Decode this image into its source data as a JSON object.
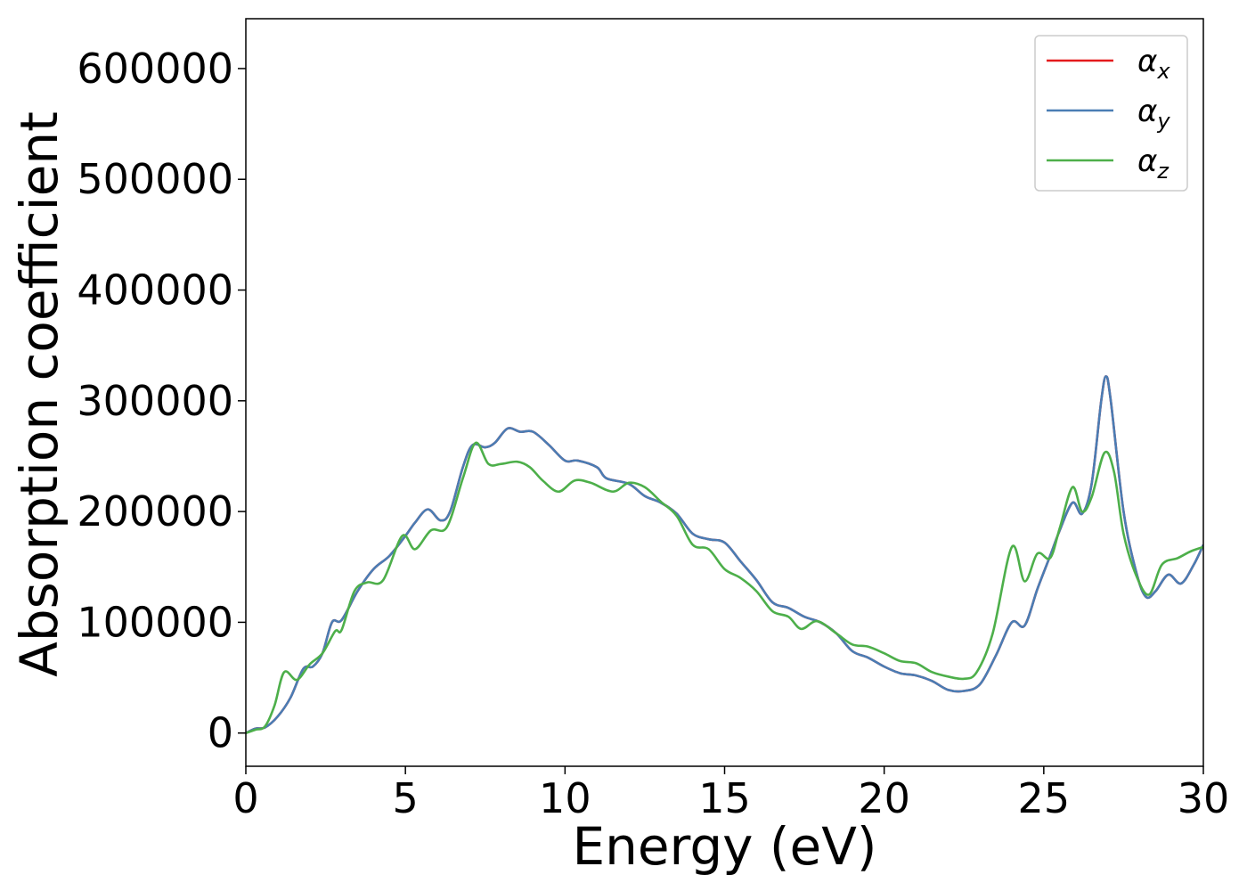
{
  "chart_data": {
    "type": "line",
    "xlabel": "Energy (eV)",
    "ylabel": "Absorption coefficient",
    "xlim": [
      0,
      30
    ],
    "ylim": [
      -30000,
      645000
    ],
    "xticks": [
      0,
      5,
      10,
      15,
      20,
      25,
      30
    ],
    "xtick_labels": [
      "0",
      "5",
      "10",
      "15",
      "20",
      "25",
      "30"
    ],
    "yticks": [
      0,
      100000,
      200000,
      300000,
      400000,
      500000,
      600000
    ],
    "ytick_labels": [
      "0",
      "100000",
      "200000",
      "300000",
      "400000",
      "500000",
      "600000"
    ],
    "grid": false,
    "legend_position": "top-right",
    "series": [
      {
        "name": "α",
        "subscript": "x",
        "color": "#e41a1c",
        "points": [
          [
            0,
            0
          ],
          [
            0.3,
            4000
          ],
          [
            0.6,
            5000
          ],
          [
            1.0,
            15000
          ],
          [
            1.4,
            32000
          ],
          [
            1.8,
            58000
          ],
          [
            2.1,
            60000
          ],
          [
            2.4,
            72000
          ],
          [
            2.7,
            100000
          ],
          [
            3.0,
            102000
          ],
          [
            3.5,
            128000
          ],
          [
            4.0,
            148000
          ],
          [
            4.5,
            160000
          ],
          [
            5.0,
            178000
          ],
          [
            5.3,
            190000
          ],
          [
            5.7,
            202000
          ],
          [
            6.1,
            192000
          ],
          [
            6.4,
            200000
          ],
          [
            6.8,
            240000
          ],
          [
            7.1,
            260000
          ],
          [
            7.5,
            258000
          ],
          [
            7.8,
            262000
          ],
          [
            8.2,
            275000
          ],
          [
            8.6,
            272000
          ],
          [
            9.0,
            272000
          ],
          [
            9.5,
            260000
          ],
          [
            10.0,
            246000
          ],
          [
            10.4,
            246000
          ],
          [
            11.0,
            240000
          ],
          [
            11.3,
            230000
          ],
          [
            12.0,
            225000
          ],
          [
            12.5,
            214000
          ],
          [
            13.0,
            208000
          ],
          [
            13.5,
            198000
          ],
          [
            14.0,
            180000
          ],
          [
            14.5,
            175000
          ],
          [
            15.0,
            172000
          ],
          [
            15.5,
            155000
          ],
          [
            16.0,
            138000
          ],
          [
            16.5,
            118000
          ],
          [
            17.0,
            113000
          ],
          [
            17.5,
            105000
          ],
          [
            18.0,
            100000
          ],
          [
            18.5,
            90000
          ],
          [
            19.0,
            74000
          ],
          [
            19.5,
            68000
          ],
          [
            20.0,
            60000
          ],
          [
            20.5,
            54000
          ],
          [
            21.0,
            52000
          ],
          [
            21.5,
            47000
          ],
          [
            22.0,
            39000
          ],
          [
            22.5,
            38000
          ],
          [
            23.0,
            44000
          ],
          [
            23.5,
            70000
          ],
          [
            24.0,
            100000
          ],
          [
            24.4,
            97000
          ],
          [
            24.8,
            130000
          ],
          [
            25.2,
            160000
          ],
          [
            25.5,
            183000
          ],
          [
            25.9,
            208000
          ],
          [
            26.2,
            198000
          ],
          [
            26.5,
            225000
          ],
          [
            26.8,
            300000
          ],
          [
            26.95,
            322000
          ],
          [
            27.1,
            300000
          ],
          [
            27.5,
            200000
          ],
          [
            27.9,
            145000
          ],
          [
            28.2,
            123000
          ],
          [
            28.5,
            128000
          ],
          [
            28.9,
            143000
          ],
          [
            29.3,
            135000
          ],
          [
            29.7,
            152000
          ],
          [
            30.0,
            170000
          ]
        ]
      },
      {
        "name": "α",
        "subscript": "y",
        "color": "#4a7db4",
        "points": [
          [
            0,
            0
          ],
          [
            0.3,
            4000
          ],
          [
            0.6,
            5000
          ],
          [
            1.0,
            15000
          ],
          [
            1.4,
            32000
          ],
          [
            1.8,
            58000
          ],
          [
            2.1,
            60000
          ],
          [
            2.4,
            72000
          ],
          [
            2.7,
            100000
          ],
          [
            3.0,
            102000
          ],
          [
            3.5,
            128000
          ],
          [
            4.0,
            148000
          ],
          [
            4.5,
            160000
          ],
          [
            5.0,
            178000
          ],
          [
            5.3,
            190000
          ],
          [
            5.7,
            202000
          ],
          [
            6.1,
            192000
          ],
          [
            6.4,
            200000
          ],
          [
            6.8,
            240000
          ],
          [
            7.1,
            260000
          ],
          [
            7.5,
            258000
          ],
          [
            7.8,
            262000
          ],
          [
            8.2,
            275000
          ],
          [
            8.6,
            272000
          ],
          [
            9.0,
            272000
          ],
          [
            9.5,
            260000
          ],
          [
            10.0,
            246000
          ],
          [
            10.4,
            246000
          ],
          [
            11.0,
            240000
          ],
          [
            11.3,
            230000
          ],
          [
            12.0,
            225000
          ],
          [
            12.5,
            214000
          ],
          [
            13.0,
            208000
          ],
          [
            13.5,
            198000
          ],
          [
            14.0,
            180000
          ],
          [
            14.5,
            175000
          ],
          [
            15.0,
            172000
          ],
          [
            15.5,
            155000
          ],
          [
            16.0,
            138000
          ],
          [
            16.5,
            118000
          ],
          [
            17.0,
            113000
          ],
          [
            17.5,
            105000
          ],
          [
            18.0,
            100000
          ],
          [
            18.5,
            90000
          ],
          [
            19.0,
            74000
          ],
          [
            19.5,
            68000
          ],
          [
            20.0,
            60000
          ],
          [
            20.5,
            54000
          ],
          [
            21.0,
            52000
          ],
          [
            21.5,
            47000
          ],
          [
            22.0,
            39000
          ],
          [
            22.5,
            38000
          ],
          [
            23.0,
            44000
          ],
          [
            23.5,
            70000
          ],
          [
            24.0,
            100000
          ],
          [
            24.4,
            97000
          ],
          [
            24.8,
            130000
          ],
          [
            25.2,
            160000
          ],
          [
            25.5,
            183000
          ],
          [
            25.9,
            208000
          ],
          [
            26.2,
            198000
          ],
          [
            26.5,
            225000
          ],
          [
            26.8,
            300000
          ],
          [
            26.95,
            322000
          ],
          [
            27.1,
            300000
          ],
          [
            27.5,
            200000
          ],
          [
            27.9,
            145000
          ],
          [
            28.2,
            123000
          ],
          [
            28.5,
            128000
          ],
          [
            28.9,
            143000
          ],
          [
            29.3,
            135000
          ],
          [
            29.7,
            152000
          ],
          [
            30.0,
            170000
          ]
        ]
      },
      {
        "name": "α",
        "subscript": "z",
        "color": "#4daf4a",
        "points": [
          [
            0,
            0
          ],
          [
            0.3,
            3000
          ],
          [
            0.6,
            6000
          ],
          [
            0.9,
            25000
          ],
          [
            1.2,
            55000
          ],
          [
            1.6,
            48000
          ],
          [
            2.0,
            62000
          ],
          [
            2.4,
            72000
          ],
          [
            2.8,
            92000
          ],
          [
            3.0,
            93000
          ],
          [
            3.4,
            128000
          ],
          [
            3.8,
            136000
          ],
          [
            4.3,
            138000
          ],
          [
            4.9,
            178000
          ],
          [
            5.3,
            166000
          ],
          [
            5.8,
            183000
          ],
          [
            6.3,
            186000
          ],
          [
            6.8,
            230000
          ],
          [
            7.2,
            262000
          ],
          [
            7.6,
            243000
          ],
          [
            8.0,
            243000
          ],
          [
            8.5,
            245000
          ],
          [
            8.9,
            240000
          ],
          [
            9.3,
            228000
          ],
          [
            9.8,
            218000
          ],
          [
            10.3,
            228000
          ],
          [
            10.8,
            226000
          ],
          [
            11.5,
            218000
          ],
          [
            12.0,
            226000
          ],
          [
            12.5,
            222000
          ],
          [
            13.0,
            209000
          ],
          [
            13.5,
            196000
          ],
          [
            14.0,
            170000
          ],
          [
            14.5,
            166000
          ],
          [
            15.0,
            148000
          ],
          [
            15.5,
            140000
          ],
          [
            16.0,
            128000
          ],
          [
            16.5,
            110000
          ],
          [
            17.0,
            105000
          ],
          [
            17.4,
            94000
          ],
          [
            17.9,
            101000
          ],
          [
            18.5,
            90000
          ],
          [
            19.0,
            80000
          ],
          [
            19.5,
            78000
          ],
          [
            20.0,
            72000
          ],
          [
            20.5,
            65000
          ],
          [
            21.0,
            63000
          ],
          [
            21.5,
            55000
          ],
          [
            22.0,
            51000
          ],
          [
            22.5,
            49000
          ],
          [
            22.9,
            55000
          ],
          [
            23.4,
            90000
          ],
          [
            24.0,
            168000
          ],
          [
            24.4,
            137000
          ],
          [
            24.8,
            162000
          ],
          [
            25.2,
            158000
          ],
          [
            25.5,
            185000
          ],
          [
            25.9,
            222000
          ],
          [
            26.2,
            200000
          ],
          [
            26.5,
            213000
          ],
          [
            26.9,
            253000
          ],
          [
            27.2,
            236000
          ],
          [
            27.5,
            180000
          ],
          [
            27.9,
            142000
          ],
          [
            28.3,
            125000
          ],
          [
            28.7,
            152000
          ],
          [
            29.2,
            158000
          ],
          [
            29.6,
            164000
          ],
          [
            30.0,
            168000
          ]
        ]
      }
    ]
  }
}
